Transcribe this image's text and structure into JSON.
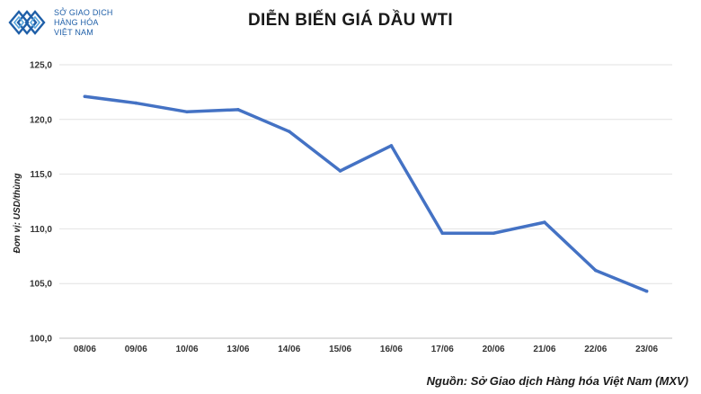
{
  "brand": {
    "line1": "SỞ GIAO DỊCH",
    "line2": "HÀNG HÓA",
    "line3": "VIỆT NAM",
    "color": "#1f5fa8"
  },
  "source_note": "Nguồn: Sở Giao dịch Hàng hóa Việt Nam (MXV)",
  "chart_data": {
    "type": "line",
    "title": "DIỄN BIẾN GIÁ DẦU WTI",
    "ylabel": "Đơn vị: USD/thùng",
    "xlabel": "",
    "categories": [
      "08/06",
      "09/06",
      "10/06",
      "13/06",
      "14/06",
      "15/06",
      "16/06",
      "17/06",
      "20/06",
      "21/06",
      "22/06",
      "23/06"
    ],
    "series": [
      {
        "values": [
          122.1,
          121.5,
          120.7,
          120.9,
          118.9,
          115.3,
          117.6,
          109.6,
          109.6,
          110.6,
          106.2,
          104.3
        ],
        "color": "#4472c4"
      }
    ],
    "ylim": [
      100,
      125
    ],
    "yticks": [
      "100,0",
      "105,0",
      "110,0",
      "115,0",
      "120,0",
      "125,0"
    ],
    "grid": true,
    "legend": "none"
  }
}
